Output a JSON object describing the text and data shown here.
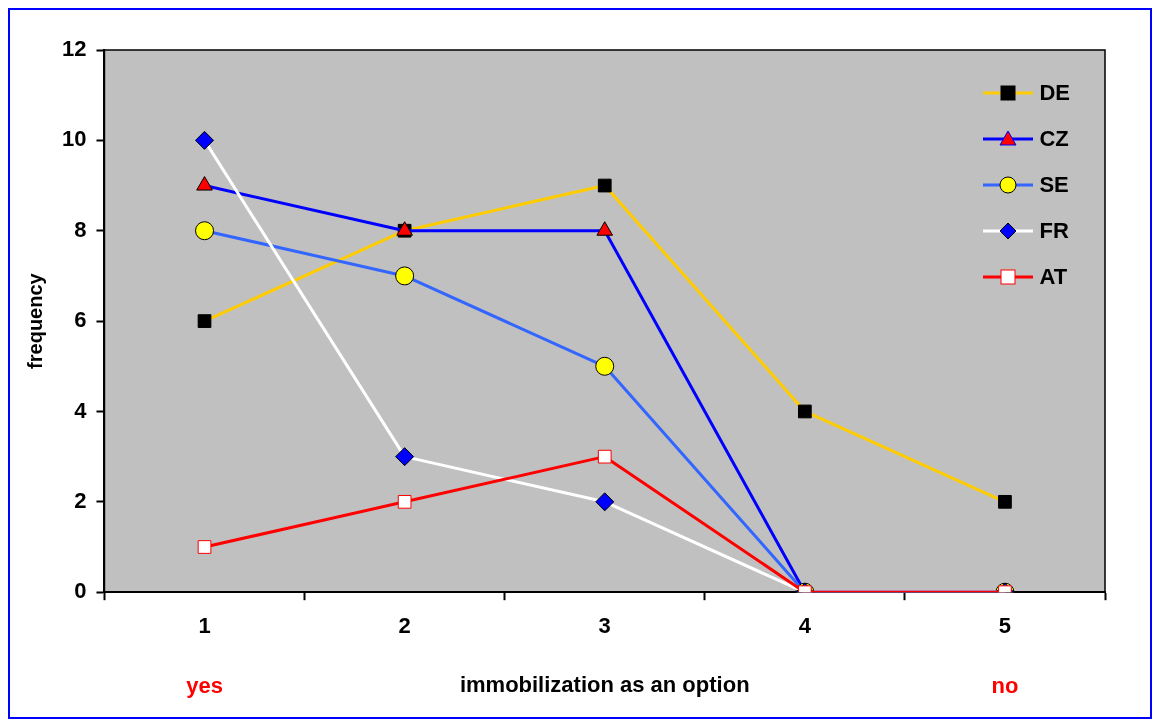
{
  "chart_data": {
    "type": "line",
    "xlabel": "immobilization as an option",
    "ylabel": "frequency",
    "categories": [
      "1",
      "2",
      "3",
      "4",
      "5"
    ],
    "series": [
      {
        "name": "DE",
        "color": "#ffcc00",
        "marker": "square",
        "colors": [
          "#000000",
          "#000000",
          "#000000",
          "#000000",
          "#000000"
        ],
        "values": [
          6,
          8,
          9,
          4,
          2
        ]
      },
      {
        "name": "CZ",
        "color": "#0000ff",
        "marker": "triangle",
        "colors": [
          "#ff0000",
          "#ff0000",
          "#ff0000",
          "#ff0000",
          "#ff0000"
        ],
        "values": [
          9,
          8,
          8,
          0,
          0
        ]
      },
      {
        "name": "SE",
        "color": "#3366ff",
        "marker": "circle",
        "colors": [
          "#ffff00",
          "#ffff00",
          "#ffff00",
          "#ffff00",
          "#ffff00"
        ],
        "values": [
          8,
          7,
          5,
          0,
          0
        ]
      },
      {
        "name": "FR",
        "color": "#ffffff",
        "marker": "diamond",
        "colors": [
          "#0000ff",
          "#0000ff",
          "#0000ff",
          "#0000ff",
          "#0000ff"
        ],
        "values": [
          10,
          3,
          2,
          0,
          0
        ]
      },
      {
        "name": "AT",
        "color": "#ff0000",
        "marker": "square",
        "colors": [
          "#ffffff",
          "#ffffff",
          "#ffffff",
          "#ffffff",
          "#ffffff"
        ],
        "values": [
          1,
          2,
          3,
          0,
          0
        ]
      }
    ],
    "ylim": [
      0,
      12
    ],
    "yticks": [
      0,
      2,
      4,
      6,
      8,
      10,
      12
    ],
    "grid": false,
    "legend": "top right",
    "annotations": [
      "yes",
      "no"
    ]
  }
}
